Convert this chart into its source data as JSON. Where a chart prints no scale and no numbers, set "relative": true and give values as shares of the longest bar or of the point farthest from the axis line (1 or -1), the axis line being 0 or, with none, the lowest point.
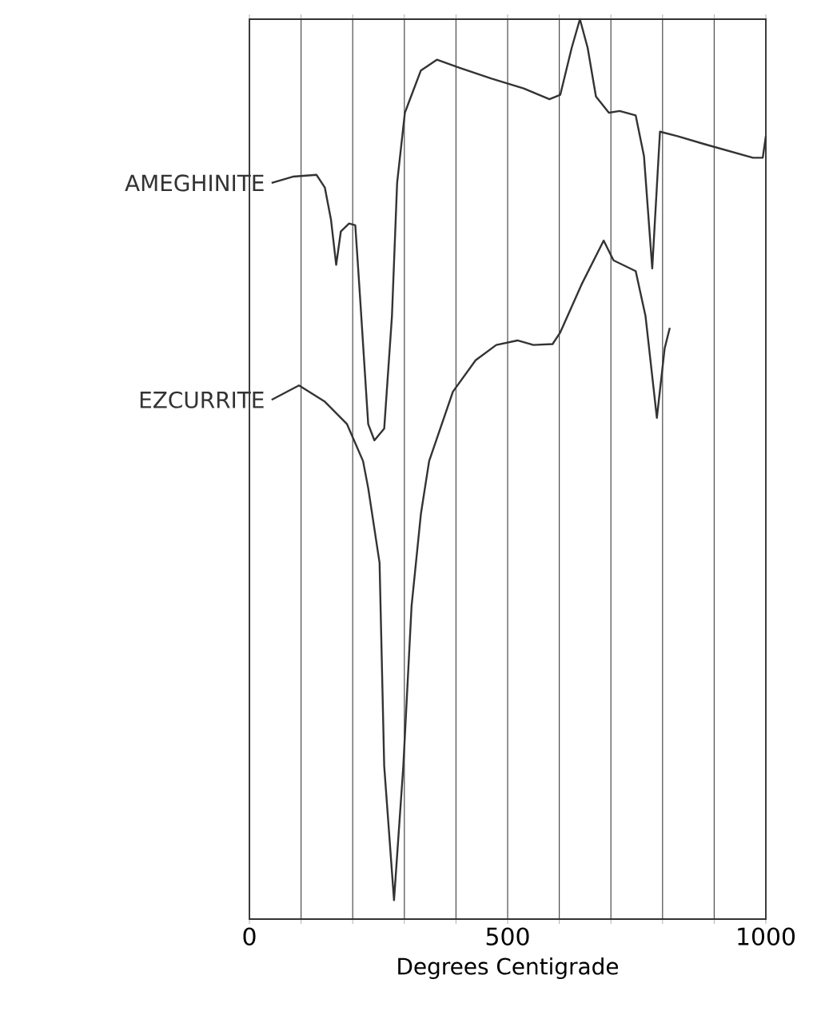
{
  "chart_data": {
    "type": "line",
    "xlabel": "Degrees Centigrade",
    "relative": true,
    "grid": "x",
    "marker": "none",
    "line_style": "solid",
    "xlim": [
      0,
      1000
    ],
    "xticks": [
      0,
      {
        "value": 100,
        "label": null
      },
      {
        "value": 200,
        "label": null
      },
      {
        "value": 300,
        "label": null
      },
      {
        "value": 400,
        "label": null
      },
      500,
      {
        "value": 600,
        "label": null
      },
      {
        "value": 700,
        "label": null
      },
      {
        "value": 800,
        "label": null
      },
      {
        "value": 900,
        "label": null
      },
      1000
    ],
    "series": [
      {
        "name": "AMEGHINITE",
        "color": "#333333",
        "x": [
          43,
          84,
          130,
          146,
          158,
          168,
          177,
          193,
          205,
          214,
          230,
          242,
          261,
          276,
          286,
          301,
          332,
          363,
          407,
          469,
          531,
          581,
          602,
          624,
          640,
          655,
          671,
          696,
          717,
          748,
          764,
          780,
          795,
          829,
          882,
          975,
          994,
          1000
        ],
        "values": [
          0.818,
          0.825,
          0.827,
          0.813,
          0.777,
          0.727,
          0.764,
          0.773,
          0.771,
          0.693,
          0.55,
          0.532,
          0.545,
          0.67,
          0.818,
          0.896,
          0.943,
          0.955,
          0.946,
          0.934,
          0.923,
          0.911,
          0.916,
          0.968,
          1.0,
          0.968,
          0.914,
          0.896,
          0.898,
          0.893,
          0.848,
          0.723,
          0.875,
          0.87,
          0.861,
          0.846,
          0.846,
          0.87
        ]
      },
      {
        "name": "EZCURRITE",
        "color": "#333333",
        "x": [
          43,
          96,
          146,
          189,
          220,
          230,
          252,
          261,
          280,
          298,
          314,
          332,
          348,
          394,
          438,
          478,
          519,
          550,
          587,
          602,
          643,
          686,
          705,
          748,
          767,
          789,
          804,
          814
        ],
        "values": [
          0.577,
          0.593,
          0.575,
          0.55,
          0.509,
          0.479,
          0.396,
          0.17,
          0.021,
          0.17,
          0.348,
          0.45,
          0.509,
          0.586,
          0.621,
          0.638,
          0.643,
          0.638,
          0.639,
          0.652,
          0.705,
          0.754,
          0.732,
          0.72,
          0.67,
          0.557,
          0.634,
          0.657
        ]
      }
    ]
  }
}
